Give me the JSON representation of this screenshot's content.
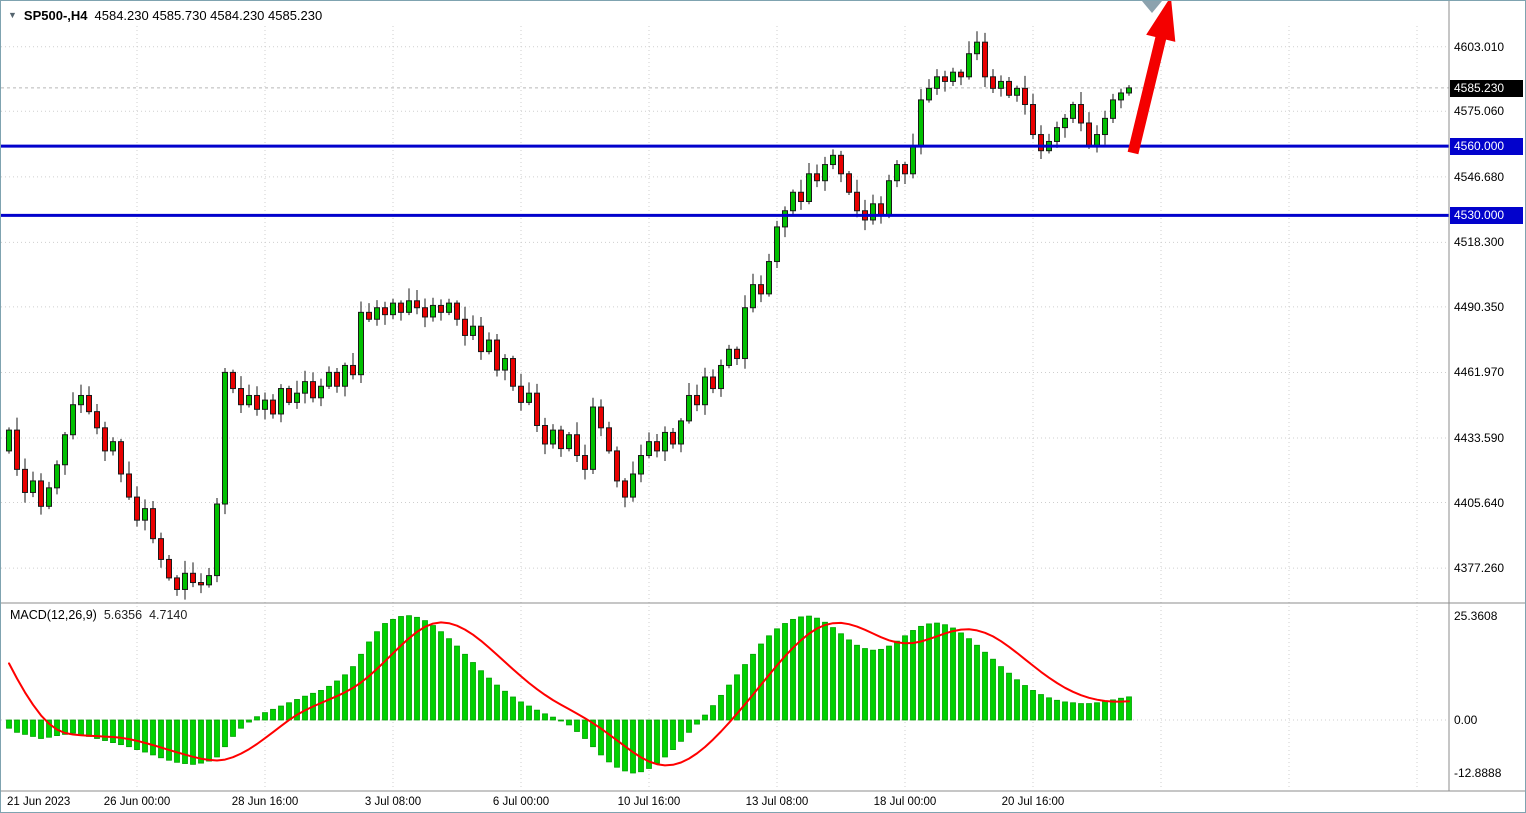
{
  "header": {
    "symbol_period": "SP500-,H4",
    "ohlc": "4584.230 4585.730 4584.230 4585.230",
    "dropdown_icon": "▼"
  },
  "macd_panel": {
    "label": "MACD(12,26,9)",
    "macd_value": "5.6356",
    "signal_value": "4.7140",
    "ticks": [
      {
        "v": 25.3608,
        "label": "25.3608"
      },
      {
        "v": 0,
        "label": "0.00"
      },
      {
        "v": -12.8888,
        "label": "-12.8888"
      }
    ]
  },
  "price_scale": {
    "ticks": [
      {
        "v": 4603.01,
        "label": "4603.010"
      },
      {
        "v": 4575.06,
        "label": "4575.060"
      },
      {
        "v": 4546.68,
        "label": "4546.680"
      },
      {
        "v": 4518.3,
        "label": "4518.300"
      },
      {
        "v": 4490.35,
        "label": "4490.350"
      },
      {
        "v": 4461.97,
        "label": "4461.970"
      },
      {
        "v": 4433.59,
        "label": "4433.590"
      },
      {
        "v": 4405.64,
        "label": "4405.640"
      },
      {
        "v": 4377.26,
        "label": "4377.260"
      }
    ],
    "current": {
      "v": 4585.23,
      "label": "4585.230",
      "bg": "#000000",
      "fg": "#ffffff"
    }
  },
  "levels": [
    {
      "v": 4560.0,
      "label": "4560.000",
      "color": "#0202cc"
    },
    {
      "v": 4530.0,
      "label": "4530.000",
      "color": "#0202cc"
    }
  ],
  "time_axis": [
    {
      "text": "21 Jun 2023",
      "bar": 0
    },
    {
      "text": "26 Jun 00:00",
      "bar": 16
    },
    {
      "text": "28 Jun 16:00",
      "bar": 32
    },
    {
      "text": "3 Jul 08:00",
      "bar": 48
    },
    {
      "text": "6 Jul 00:00",
      "bar": 64
    },
    {
      "text": "10 Jul 16:00",
      "bar": 80
    },
    {
      "text": "13 Jul 08:00",
      "bar": 96
    },
    {
      "text": "18 Jul 00:00",
      "bar": 112
    },
    {
      "text": "20 Jul 16:00",
      "bar": 128
    }
  ],
  "annotations": {
    "trend_arrow": {
      "type": "arrow",
      "direction": "up",
      "color": "#f40000"
    },
    "shift_marker": {
      "color": "#8ca2ae"
    }
  },
  "colors": {
    "candle_up": "#00c000",
    "candle_down": "#e80000",
    "candle_outline": "#1a1a1a",
    "macd_hist": "#00d200",
    "macd_hist_outline": "#00a000",
    "macd_signal": "#ff0000",
    "grid": "#cfcfcf",
    "separator": "#8e8e8e",
    "bid_line": "#b8b8b8"
  },
  "chart_data": {
    "type": "candlestick+macd",
    "symbol": "SP500-",
    "timeframe": "H4",
    "bar_spacing": 8,
    "first_bar_x": 8,
    "open_first": 4428,
    "ylim": [
      4363,
      4612
    ],
    "macd_ylim": [
      -16.8,
      28.0
    ],
    "closes": [
      4437,
      4420,
      4410,
      4415,
      4404,
      4412,
      4422,
      4435,
      4448,
      4452,
      4445,
      4438,
      4428,
      4432,
      4418,
      4408,
      4398,
      4403,
      4390,
      4381,
      4373,
      4368,
      4375,
      4371,
      4370,
      4374,
      4405,
      4462,
      4455,
      4448,
      4452,
      4446,
      4450,
      4444,
      4455,
      4449,
      4453,
      4458,
      4451,
      4456,
      4462,
      4456,
      4465,
      4461,
      4488,
      4485,
      4490,
      4487,
      4492,
      4488,
      4493,
      4490,
      4486,
      4491,
      4488,
      4492,
      4485,
      4478,
      4482,
      4471,
      4476,
      4463,
      4468,
      4456,
      4449,
      4453,
      4439,
      4431,
      4437,
      4429,
      4435,
      4426,
      4420,
      4447,
      4438,
      4428,
      4415,
      4408,
      4418,
      4426,
      4432,
      4428,
      4436,
      4431,
      4441,
      4452,
      4448,
      4460,
      4455,
      4465,
      4472,
      4468,
      4490,
      4500,
      4496,
      4510,
      4525,
      4532,
      4540,
      4536,
      4548,
      4545,
      4552,
      4556,
      4548,
      4540,
      4532,
      4528,
      4535,
      4530,
      4545,
      4552,
      4548,
      4560,
      4580,
      4585,
      4590,
      4588,
      4592,
      4590,
      4600,
      4605,
      4590,
      4585,
      4588,
      4582,
      4585,
      4578,
      4565,
      4558,
      4562,
      4568,
      4572,
      4578,
      4570,
      4560,
      4565,
      4572,
      4580,
      4583,
      4585.2
    ],
    "macd_hist": [
      -2.0,
      -3.0,
      -3.5,
      -4.0,
      -4.5,
      -4.2,
      -3.8,
      -3.5,
      -3.2,
      -3.6,
      -4.0,
      -4.5,
      -5.0,
      -5.5,
      -6.0,
      -6.5,
      -7.2,
      -7.8,
      -8.5,
      -9.2,
      -9.8,
      -10.3,
      -10.6,
      -10.8,
      -10.5,
      -10.0,
      -9.0,
      -6.5,
      -4.0,
      -2.0,
      -0.5,
      0.8,
      1.8,
      2.6,
      3.4,
      4.2,
      5.0,
      5.8,
      6.5,
      7.2,
      8.2,
      9.5,
      11.0,
      13.0,
      16.0,
      19.0,
      21.5,
      23.5,
      24.5,
      25.2,
      25.4,
      25.0,
      24.2,
      23.0,
      21.5,
      19.8,
      18.0,
      16.0,
      14.0,
      12.0,
      10.2,
      8.5,
      7.0,
      5.6,
      4.4,
      3.4,
      2.4,
      1.5,
      0.7,
      0.0,
      -1.2,
      -2.8,
      -4.5,
      -6.5,
      -8.5,
      -10.2,
      -11.5,
      -12.4,
      -12.9,
      -12.6,
      -11.8,
      -10.5,
      -9.0,
      -7.2,
      -5.2,
      -3.0,
      -1.0,
      1.2,
      3.5,
      6.0,
      8.5,
      11.0,
      13.5,
      16.0,
      18.5,
      20.5,
      22.2,
      23.5,
      24.5,
      25.1,
      25.3,
      24.8,
      23.8,
      22.5,
      21.0,
      19.5,
      18.2,
      17.4,
      17.0,
      17.2,
      18.0,
      19.2,
      20.5,
      21.8,
      22.8,
      23.4,
      23.6,
      23.2,
      22.4,
      21.2,
      19.8,
      18.2,
      16.5,
      14.8,
      13.0,
      11.4,
      9.8,
      8.4,
      7.2,
      6.2,
      5.4,
      4.8,
      4.4,
      4.2,
      4.0,
      4.0,
      4.2,
      4.5,
      4.9,
      5.3,
      5.6356
    ],
    "macd_pre": [
      30,
      27,
      23,
      19,
      14,
      9,
      4,
      0
    ]
  }
}
